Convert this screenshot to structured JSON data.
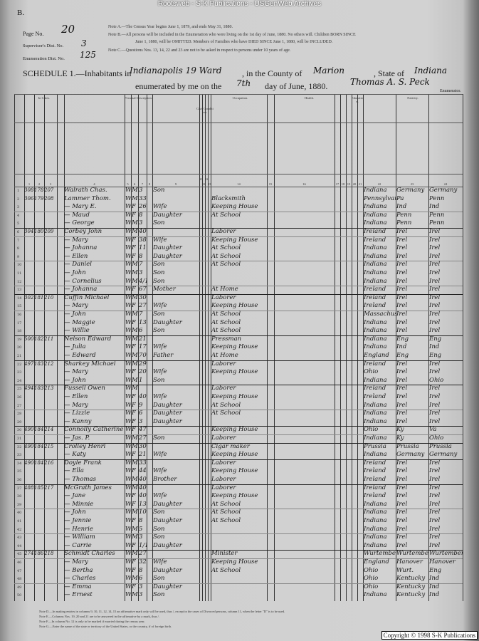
{
  "banner": "Rootsweb - S-K Publications - USGenWeb Archives",
  "sheet_letter": "B.",
  "header": {
    "page_no_label": "Page No.",
    "page_no": "20",
    "supervisor_label": "Supervisor's Dist. No.",
    "supervisor": "3",
    "enumeration_label": "Enumeration Dist. No.",
    "enumeration": "125",
    "notes": [
      "Note A.—The Census Year begins June 1, 1879, and ends May 31, 1880.",
      "Note B.—All persons will be included in the Enumeration who were living on the 1st day of June, 1880. No others will. Children BORN SINCE",
      "June 1, 1880, will be OMITTED. Members of Families who have DIED SINCE June 1, 1880, will be INCLUDED.",
      "Note C.—Questions Nos. 13, 14, 22 and 23 are not to be asked in respect to persons under 10 years of age."
    ],
    "schedule_label": "SCHEDULE 1.—Inhabitants in",
    "place": "Indianapolis 19 Ward",
    "county_label": ", in the County of",
    "county": "Marion",
    "state_label": ", State of",
    "state": "Indiana",
    "enumerated_label": "enumerated by me on the",
    "day": "7th",
    "date_suffix": "day of June, 1880.",
    "enumerator_signature": "Thomas A. S. Peck",
    "enumerator_label": "Enumerator."
  },
  "column_groups": [
    "In Cities.",
    "Personal Description.",
    "Civil Condition.",
    "Occupation.",
    "Health.",
    "Education.",
    "Nativity."
  ],
  "column_numbers": [
    "1",
    "2",
    "3",
    "4",
    "5",
    "6",
    "7",
    "8",
    "9",
    "10",
    "11",
    "12",
    "13",
    "14",
    "15",
    "16",
    "17",
    "18",
    "19",
    "20",
    "21",
    "22",
    "23",
    "24",
    "25",
    "26"
  ],
  "rows": [
    [
      "308",
      "178",
      "207",
      "Walrath Chas.",
      "W",
      "M",
      "3",
      "Son",
      "",
      "Indiana",
      "Germany",
      "Germany"
    ],
    [
      "306",
      "179",
      "208",
      "Lammer Thom.",
      "W",
      "M",
      "33",
      "",
      "Blacksmith",
      "Pennsylvania",
      "Pa",
      "Penn"
    ],
    [
      "",
      "",
      "",
      "— Mary E.",
      "W",
      "F",
      "26",
      "Wife",
      "Keeping House",
      "Indiana",
      "Ind",
      "Ind"
    ],
    [
      "",
      "",
      "",
      "— Maud",
      "W",
      "F",
      "8",
      "Daughter",
      "At School",
      "Indiana",
      "Penn",
      "Penn"
    ],
    [
      "",
      "",
      "",
      "— George",
      "W",
      "M",
      "3",
      "Son",
      "",
      "Indiana",
      "Penn",
      "Penn"
    ],
    [
      "304",
      "180",
      "209",
      "Corbey John",
      "W",
      "M",
      "40",
      "",
      "Laborer",
      "Ireland",
      "Irel",
      "Irel"
    ],
    [
      "",
      "",
      "",
      "— Mary",
      "W",
      "F",
      "38",
      "Wife",
      "Keeping House",
      "Ireland",
      "Irel",
      "Irel"
    ],
    [
      "",
      "",
      "",
      "— Johanna",
      "W",
      "F",
      "11",
      "Daughter",
      "At School",
      "Indiana",
      "Irel",
      "Irel"
    ],
    [
      "",
      "",
      "",
      "— Ellen",
      "W",
      "F",
      "8",
      "Daughter",
      "At School",
      "Indiana",
      "Irel",
      "Irel"
    ],
    [
      "",
      "",
      "",
      "— Daniel",
      "W",
      "M",
      "7",
      "Son",
      "At School",
      "Indiana",
      "Irel",
      "Irel"
    ],
    [
      "",
      "",
      "",
      "— John",
      "W",
      "M",
      "3",
      "Son",
      "",
      "Indiana",
      "Irel",
      "Irel"
    ],
    [
      "",
      "",
      "",
      "— Cornelius",
      "W",
      "M",
      "4/12",
      "Son",
      "",
      "Indiana",
      "Irel",
      "Irel"
    ],
    [
      "",
      "",
      "",
      "— Johanna",
      "W",
      "F",
      "67",
      "Mother",
      "At Home",
      "Ireland",
      "Irel",
      "Irel"
    ],
    [
      "302",
      "181",
      "210",
      "Cuffin Michael",
      "W",
      "M",
      "30",
      "",
      "Laborer",
      "Ireland",
      "Irel",
      "Irel"
    ],
    [
      "",
      "",
      "",
      "— Mary",
      "W",
      "F",
      "27",
      "Wife",
      "Keeping House",
      "Ireland",
      "Irel",
      "Irel"
    ],
    [
      "",
      "",
      "",
      "— John",
      "W",
      "M",
      "7",
      "Son",
      "At School",
      "Massachusetts",
      "Irel",
      "Irel"
    ],
    [
      "",
      "",
      "",
      "— Maggie",
      "W",
      "F",
      "13",
      "Daughter",
      "At School",
      "Indiana",
      "Irel",
      "Irel"
    ],
    [
      "",
      "",
      "",
      "— Willie",
      "W",
      "M",
      "6",
      "Son",
      "At School",
      "Indiana",
      "Irel",
      "Irel"
    ],
    [
      "500",
      "182",
      "211",
      "Nelson Edward",
      "W",
      "M",
      "21",
      "",
      "Pressman",
      "Indiana",
      "Eng",
      "Eng"
    ],
    [
      "",
      "",
      "",
      "— Julia",
      "W",
      "F",
      "17",
      "Wife",
      "Keeping House",
      "Indiana",
      "Ind",
      "Ind"
    ],
    [
      "",
      "",
      "",
      "— Edward",
      "W",
      "M",
      "70",
      "Father",
      "At Home",
      "England",
      "Eng",
      "Eng"
    ],
    [
      "497",
      "183",
      "212",
      "Sharkey Michael",
      "W",
      "M",
      "29",
      "",
      "Laborer",
      "Ireland",
      "Irel",
      "Irel"
    ],
    [
      "",
      "",
      "",
      "— Mary",
      "W",
      "F",
      "20",
      "Wife",
      "Keeping House",
      "Ohio",
      "Irel",
      "Irel"
    ],
    [
      "",
      "",
      "",
      "— John",
      "W",
      "M",
      "1",
      "Son",
      "",
      "Indiana",
      "Irel",
      "Ohio"
    ],
    [
      "494",
      "183",
      "213",
      "Fussell Owen",
      "W",
      "M",
      "",
      "",
      "Laborer",
      "Ireland",
      "Irel",
      "Irel"
    ],
    [
      "",
      "",
      "",
      "— Ellen",
      "W",
      "F",
      "40",
      "Wife",
      "Keeping House",
      "Ireland",
      "Irel",
      "Irel"
    ],
    [
      "",
      "",
      "",
      "— Mary",
      "W",
      "F",
      "9",
      "Daughter",
      "At School",
      "Indiana",
      "Irel",
      "Irel"
    ],
    [
      "",
      "",
      "",
      "— Lizzie",
      "W",
      "F",
      "6",
      "Daughter",
      "At School",
      "Indiana",
      "Irel",
      "Irel"
    ],
    [
      "",
      "",
      "",
      "— Kanny",
      "W",
      "F",
      "3",
      "Daughter",
      "",
      "Indiana",
      "Irel",
      "Irel"
    ],
    [
      "490",
      "184",
      "214",
      "Connolly Catherine",
      "W",
      "F",
      "47",
      "",
      "Keeping House",
      "Ohio",
      "Ky",
      "Va"
    ],
    [
      "",
      "",
      "",
      "— Jas. P.",
      "W",
      "M",
      "27",
      "Son",
      "Laborer",
      "Indiana",
      "Ky",
      "Ohio"
    ],
    [
      "490",
      "184",
      "215",
      "Crolley Henri",
      "W",
      "M",
      "30",
      "",
      "Cigar maker",
      "Prussia",
      "Prussia",
      "Prussia"
    ],
    [
      "",
      "",
      "",
      "— Katy",
      "W",
      "F",
      "21",
      "Wife",
      "Keeping House",
      "Indiana",
      "Germany",
      "Germany"
    ],
    [
      "490",
      "184",
      "216",
      "Doyle Frank",
      "W",
      "M",
      "33",
      "",
      "Laborer",
      "Ireland",
      "Irel",
      "Irel"
    ],
    [
      "",
      "",
      "",
      "— Ella",
      "W",
      "F",
      "44",
      "Wife",
      "Keeping House",
      "Ireland",
      "Irel",
      "Irel"
    ],
    [
      "",
      "",
      "",
      "— Thomas",
      "W",
      "M",
      "40",
      "Brother",
      "Laborer",
      "Ireland",
      "Irel",
      "Irel"
    ],
    [
      "488",
      "185",
      "217",
      "McGrath James",
      "W",
      "M",
      "40",
      "",
      "Laborer",
      "Ireland",
      "Irel",
      "Irel"
    ],
    [
      "",
      "",
      "",
      "— Jane",
      "W",
      "F",
      "40",
      "Wife",
      "Keeping House",
      "Ireland",
      "Irel",
      "Irel"
    ],
    [
      "",
      "",
      "",
      "— Minnie",
      "W",
      "F",
      "13",
      "Daughter",
      "At School",
      "Indiana",
      "Irel",
      "Irel"
    ],
    [
      "",
      "",
      "",
      "— John",
      "W",
      "M",
      "10",
      "Son",
      "At School",
      "Indiana",
      "Irel",
      "Irel"
    ],
    [
      "",
      "",
      "",
      "— Jennie",
      "W",
      "F",
      "8",
      "Daughter",
      "At School",
      "Indiana",
      "Irel",
      "Irel"
    ],
    [
      "",
      "",
      "",
      "— Henrie",
      "W",
      "M",
      "5",
      "Son",
      "",
      "Indiana",
      "Irel",
      "Irel"
    ],
    [
      "",
      "",
      "",
      "— William",
      "W",
      "M",
      "3",
      "Son",
      "",
      "Indiana",
      "Irel",
      "Irel"
    ],
    [
      "",
      "",
      "",
      "— Carrie",
      "W",
      "F",
      "1/12",
      "Daughter",
      "",
      "Indiana",
      "Irel",
      "Irel"
    ],
    [
      "274",
      "186",
      "218",
      "Schmidt Charles",
      "W",
      "M",
      "27",
      "",
      "Minister",
      "Wurtemberg",
      "Wurtemberg",
      "Wurtemberg"
    ],
    [
      "",
      "",
      "",
      "— Mary",
      "W",
      "F",
      "32",
      "Wife",
      "Keeping House",
      "England",
      "Hanover",
      "Hanover"
    ],
    [
      "",
      "",
      "",
      "— Bertha",
      "W",
      "F",
      "8",
      "Daughter",
      "At School",
      "Ohio",
      "Wurt.",
      "Eng"
    ],
    [
      "",
      "",
      "",
      "— Charles",
      "W",
      "M",
      "6",
      "Son",
      "",
      "Ohio",
      "Kentucky",
      "Ind"
    ],
    [
      "",
      "",
      "",
      "— Emma",
      "W",
      "F",
      "3",
      "Daughter",
      "",
      "Ohio",
      "Kentucky",
      "Ind"
    ],
    [
      "",
      "",
      "",
      "— Ernest",
      "W",
      "M",
      "3",
      "Son",
      "",
      "Indiana",
      "Kentucky",
      "Ind"
    ]
  ],
  "footer_notes": [
    "Note D.—In making entries in columns 9, 10, 11, 12, 14, 15 an affirmative mark only will be used, thus /, except in the cases of Divorced persons, column 11, when the letter \"D\" is to be used.",
    "Note E.—Columns Nos. 19, 20 and 21 are to be answered in the affirmative by a mark, thus /.",
    "Note F.—In column No. 12 is only to be marked if married during the census year.",
    "Note G.—Enter the name of the state or territory of the United States, or the country, if of foreign birth."
  ],
  "copyright": "Copyright © 1998 S-K Publications"
}
